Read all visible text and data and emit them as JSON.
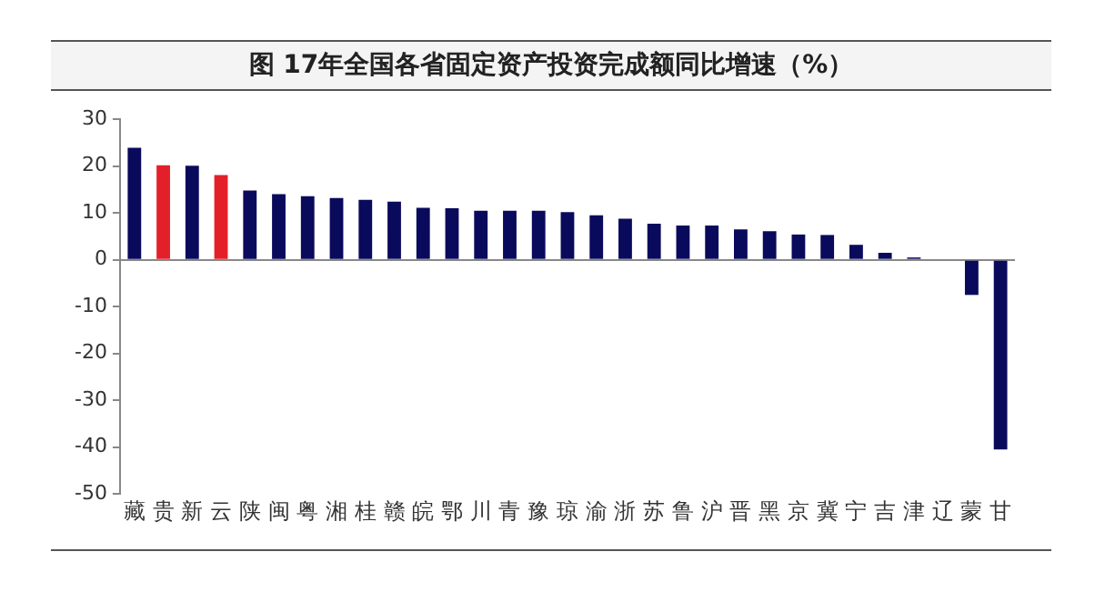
{
  "chart_data": {
    "type": "bar",
    "title": "图 17年全国各省固定资产投资完成额同比增速（%）",
    "categories": [
      "藏",
      "贵",
      "新",
      "云",
      "陕",
      "闽",
      "粤",
      "湘",
      "桂",
      "赣",
      "皖",
      "鄂",
      "川",
      "青",
      "豫",
      "琼",
      "渝",
      "浙",
      "苏",
      "鲁",
      "沪",
      "晋",
      "黑",
      "京",
      "冀",
      "宁",
      "吉",
      "津",
      "辽",
      "蒙",
      "甘"
    ],
    "values": [
      23.9,
      20.2,
      20.1,
      18.1,
      14.8,
      14.0,
      13.6,
      13.2,
      12.8,
      12.4,
      11.1,
      11.0,
      10.5,
      10.5,
      10.5,
      10.2,
      9.5,
      8.8,
      7.7,
      7.3,
      7.3,
      6.5,
      6.1,
      5.4,
      5.3,
      3.2,
      1.5,
      0.5,
      null,
      -7.5,
      -40.5
    ],
    "colors": [
      "#0a0a5c",
      "#e3202a",
      "#0a0a5c",
      "#e3202a",
      "#0a0a5c",
      "#0a0a5c",
      "#0a0a5c",
      "#0a0a5c",
      "#0a0a5c",
      "#0a0a5c",
      "#0a0a5c",
      "#0a0a5c",
      "#0a0a5c",
      "#0a0a5c",
      "#0a0a5c",
      "#0a0a5c",
      "#0a0a5c",
      "#0a0a5c",
      "#0a0a5c",
      "#0a0a5c",
      "#0a0a5c",
      "#0a0a5c",
      "#0a0a5c",
      "#0a0a5c",
      "#0a0a5c",
      "#0a0a5c",
      "#0a0a5c",
      "#0a0a5c",
      "#0a0a5c",
      "#0a0a5c",
      "#0a0a5c"
    ],
    "ylim": [
      -50,
      30
    ],
    "yticks": [
      -50,
      -40,
      -30,
      -20,
      -10,
      0,
      10,
      20,
      30
    ]
  }
}
